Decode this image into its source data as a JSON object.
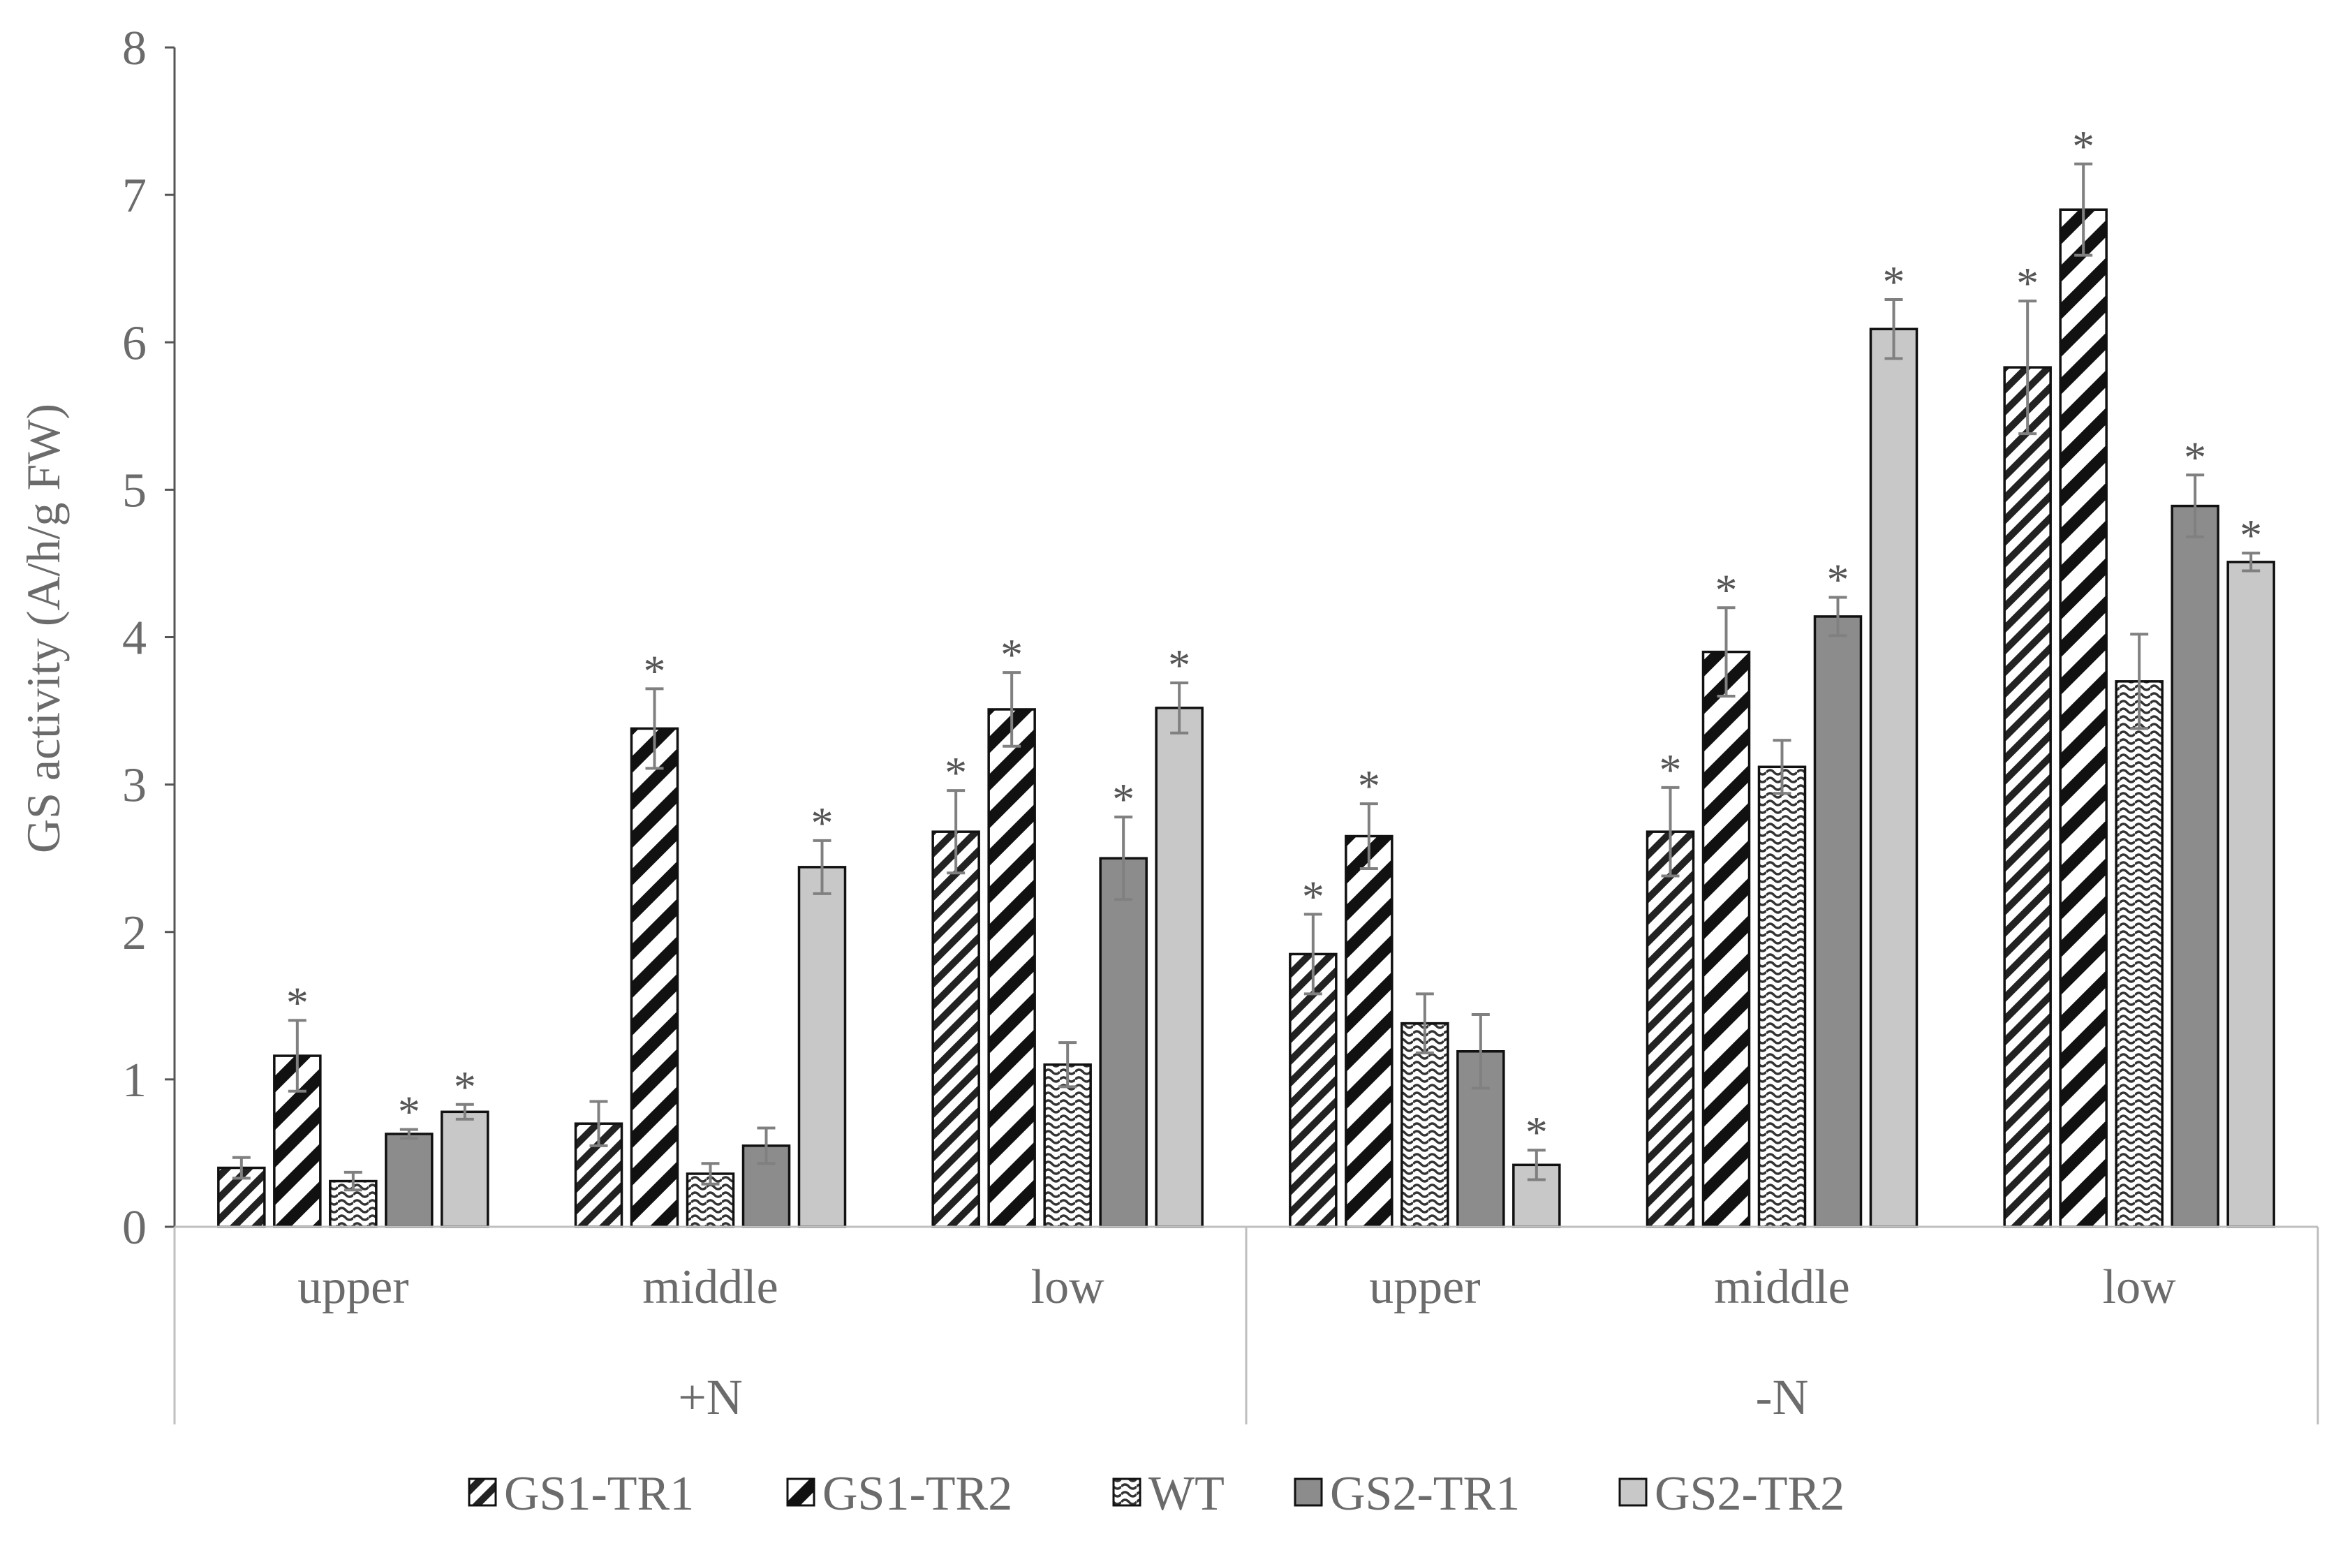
{
  "chart_data": {
    "type": "bar",
    "ylabel": "GS activity (A/h/g FW)",
    "ylim": [
      0,
      8
    ],
    "yticks": [
      0,
      1,
      2,
      3,
      4,
      5,
      6,
      7,
      8
    ],
    "groups": [
      {
        "label": "+N",
        "categories": [
          "upper",
          "middle",
          "low"
        ]
      },
      {
        "label": "-N",
        "categories": [
          "upper",
          "middle",
          "low"
        ]
      }
    ],
    "categories": [
      "upper",
      "middle",
      "low",
      "upper",
      "middle",
      "low"
    ],
    "series": [
      {
        "name": "GS1-TR1",
        "pattern": "diag-dense",
        "values": [
          0.4,
          0.7,
          2.68,
          1.85,
          2.68,
          5.83
        ],
        "errors": [
          0.07,
          0.15,
          0.28,
          0.27,
          0.3,
          0.45
        ],
        "significant": [
          false,
          false,
          true,
          true,
          true,
          true
        ]
      },
      {
        "name": "GS1-TR2",
        "pattern": "diag-wide",
        "values": [
          1.16,
          3.38,
          3.51,
          2.65,
          3.9,
          6.9
        ],
        "errors": [
          0.24,
          0.27,
          0.25,
          0.22,
          0.3,
          0.31
        ],
        "significant": [
          true,
          true,
          true,
          true,
          true,
          true
        ]
      },
      {
        "name": "WT",
        "pattern": "wave",
        "values": [
          0.31,
          0.36,
          1.1,
          1.38,
          3.12,
          3.7
        ],
        "errors": [
          0.06,
          0.07,
          0.15,
          0.2,
          0.18,
          0.32
        ],
        "significant": [
          false,
          false,
          false,
          false,
          false,
          false
        ]
      },
      {
        "name": "GS2-TR1",
        "pattern": "solid-dark",
        "values": [
          0.63,
          0.55,
          2.5,
          1.19,
          4.14,
          4.89
        ],
        "errors": [
          0.03,
          0.12,
          0.28,
          0.25,
          0.13,
          0.21
        ],
        "significant": [
          true,
          false,
          true,
          false,
          true,
          true
        ]
      },
      {
        "name": "GS2-TR2",
        "pattern": "solid-light",
        "values": [
          0.78,
          2.44,
          3.52,
          0.42,
          6.09,
          4.51
        ],
        "errors": [
          0.05,
          0.18,
          0.17,
          0.1,
          0.2,
          0.06
        ],
        "significant": [
          true,
          true,
          true,
          true,
          true,
          true
        ]
      }
    ],
    "significance_marker": "*",
    "colors": {
      "solid_dark": "#8c8c8c",
      "solid_light": "#c8c8c8",
      "axis": "#555555",
      "text": "#6b6b6b",
      "error_bar": "#808080"
    },
    "legend_position": "bottom"
  }
}
